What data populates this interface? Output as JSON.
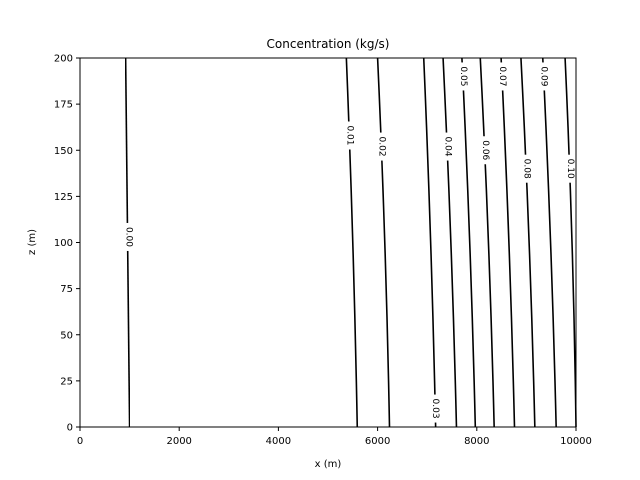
{
  "chart_data": {
    "type": "contour",
    "title": "Concentration (kg/s)",
    "xlabel": "x (m)",
    "ylabel": "z (m)",
    "xlim": [
      0,
      10000
    ],
    "ylim": [
      0,
      200
    ],
    "x_ticks": [
      0,
      2000,
      4000,
      6000,
      8000,
      10000
    ],
    "y_ticks": [
      0,
      25,
      50,
      75,
      100,
      125,
      150,
      175,
      200
    ],
    "grid": false,
    "line_color": "#000000",
    "contours": [
      {
        "level": "0.00",
        "points": [
          [
            1000,
            0
          ],
          [
            975,
            100
          ],
          [
            920,
            200
          ]
        ],
        "label_z": 103
      },
      {
        "level": "0.01",
        "points": [
          [
            5590,
            0
          ],
          [
            5520,
            100
          ],
          [
            5370,
            200
          ]
        ],
        "label_z": 158
      },
      {
        "level": "0.02",
        "points": [
          [
            6240,
            0
          ],
          [
            6170,
            100
          ],
          [
            6000,
            200
          ]
        ],
        "label_z": 152
      },
      {
        "level": "0.03",
        "points": [
          [
            7170,
            0
          ],
          [
            7090,
            100
          ],
          [
            6930,
            200
          ]
        ],
        "label_z": 10
      },
      {
        "level": "0.04",
        "points": [
          [
            7590,
            0
          ],
          [
            7500,
            100
          ],
          [
            7320,
            200
          ]
        ],
        "label_z": 152
      },
      {
        "level": "0.05",
        "points": [
          [
            7970,
            0
          ],
          [
            7880,
            100
          ],
          [
            7700,
            200
          ]
        ],
        "label_z": 190
      },
      {
        "level": "0.06",
        "points": [
          [
            8350,
            0
          ],
          [
            8260,
            100
          ],
          [
            8070,
            200
          ]
        ],
        "label_z": 150
      },
      {
        "level": "0.07",
        "points": [
          [
            8760,
            0
          ],
          [
            8670,
            100
          ],
          [
            8490,
            200
          ]
        ],
        "label_z": 190
      },
      {
        "level": "0.08",
        "points": [
          [
            9170,
            0
          ],
          [
            9080,
            100
          ],
          [
            8890,
            200
          ]
        ],
        "label_z": 140
      },
      {
        "level": "0.09",
        "points": [
          [
            9600,
            0
          ],
          [
            9510,
            100
          ],
          [
            9330,
            200
          ]
        ],
        "label_z": 190
      },
      {
        "level": "0.10",
        "points": [
          [
            10000,
            0
          ],
          [
            9950,
            100
          ],
          [
            9780,
            200
          ]
        ],
        "label_z": 140
      }
    ]
  }
}
